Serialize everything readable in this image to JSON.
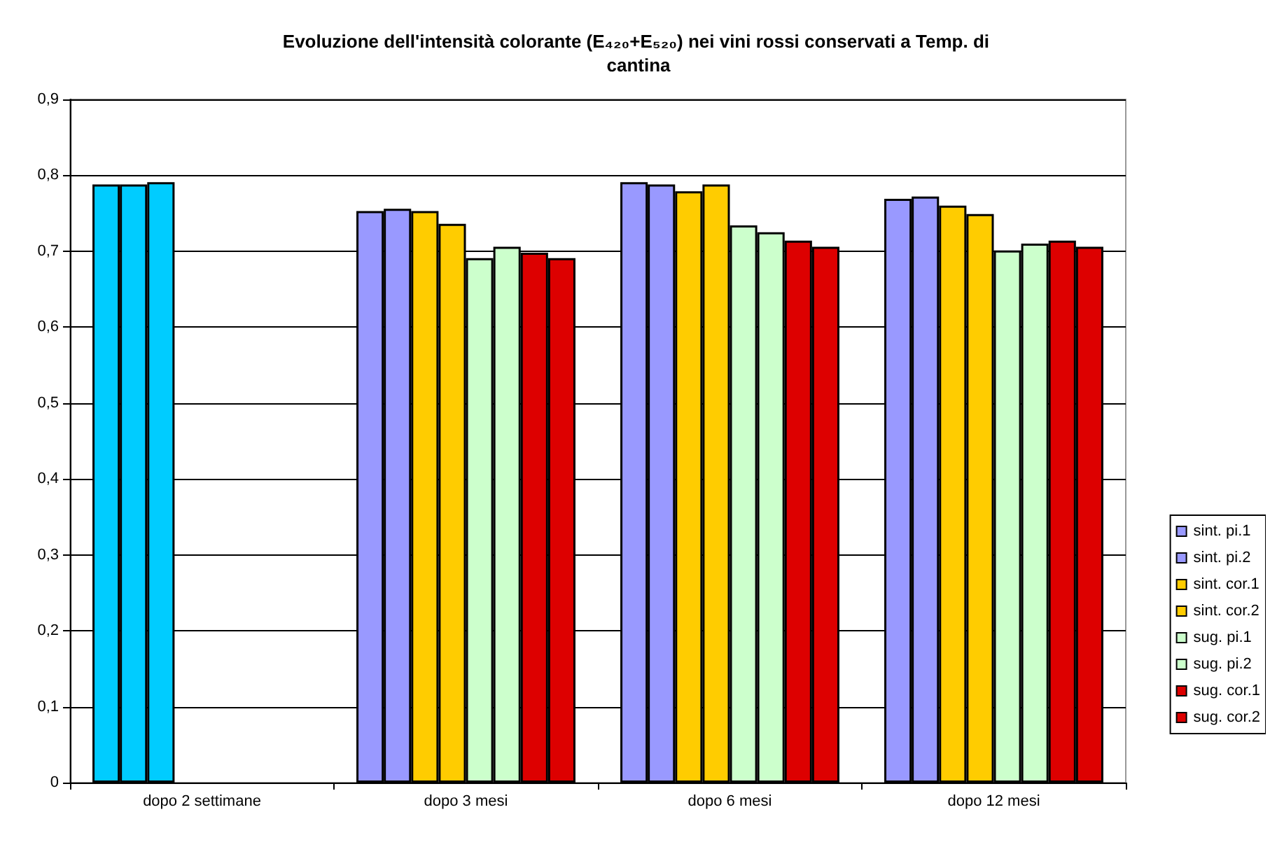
{
  "chart_data": {
    "type": "bar",
    "title": "Evoluzione dell'intensità colorante (E₄₂₀+E₅₂₀) nei vini rossi conservati a Temp. di cantina",
    "categories": [
      "dopo 2 settimane",
      "dopo 3 mesi",
      "dopo 6 mesi",
      "dopo 12 mesi"
    ],
    "series": [
      {
        "name": "sint. pi.1",
        "color": "#9999ff",
        "colors": [
          "#00ccff",
          "#9999ff",
          "#9999ff",
          "#9999ff"
        ],
        "values": [
          0.788,
          0.753,
          0.791,
          0.769
        ]
      },
      {
        "name": "sint. pi.2",
        "color": "#9999ff",
        "colors": [
          "#00ccff",
          "#9999ff",
          "#9999ff",
          "#9999ff"
        ],
        "values": [
          0.788,
          0.756,
          0.788,
          0.772
        ]
      },
      {
        "name": "sint. cor.1",
        "color": "#ffcc00",
        "colors": [
          "#00ccff",
          "#ffcc00",
          "#ffcc00",
          "#ffcc00"
        ],
        "values": [
          0.791,
          0.753,
          0.779,
          0.76
        ]
      },
      {
        "name": "sint. cor.2",
        "color": "#ffcc00",
        "values": [
          null,
          0.736,
          0.788,
          0.749
        ]
      },
      {
        "name": "sug. pi.1",
        "color": "#ccffcc",
        "values": [
          null,
          0.691,
          0.734,
          0.701
        ]
      },
      {
        "name": "sug. pi.2",
        "color": "#ccffcc",
        "values": [
          null,
          0.706,
          0.725,
          0.71
        ]
      },
      {
        "name": "sug. cor.1",
        "color": "#dd0000",
        "values": [
          null,
          0.698,
          0.714,
          0.714
        ]
      },
      {
        "name": "sug. cor.2",
        "color": "#dd0000",
        "values": [
          null,
          0.691,
          0.706,
          0.706
        ]
      }
    ],
    "ylim": [
      0,
      0.9
    ],
    "yticks": [
      0,
      {
        "value": 0.1,
        "label": "0,1"
      },
      {
        "value": 0.2,
        "label": "0,2"
      },
      {
        "value": 0.3,
        "label": "0,3"
      },
      {
        "value": 0.4,
        "label": "0,4"
      },
      {
        "value": 0.5,
        "label": "0,5"
      },
      {
        "value": 0.6,
        "label": "0,6"
      },
      {
        "value": 0.7,
        "label": "0,7"
      },
      {
        "value": 0.8,
        "label": "0,8"
      },
      {
        "value": 0.9,
        "label": "0,9"
      }
    ],
    "grid": "y",
    "legend": "right"
  }
}
